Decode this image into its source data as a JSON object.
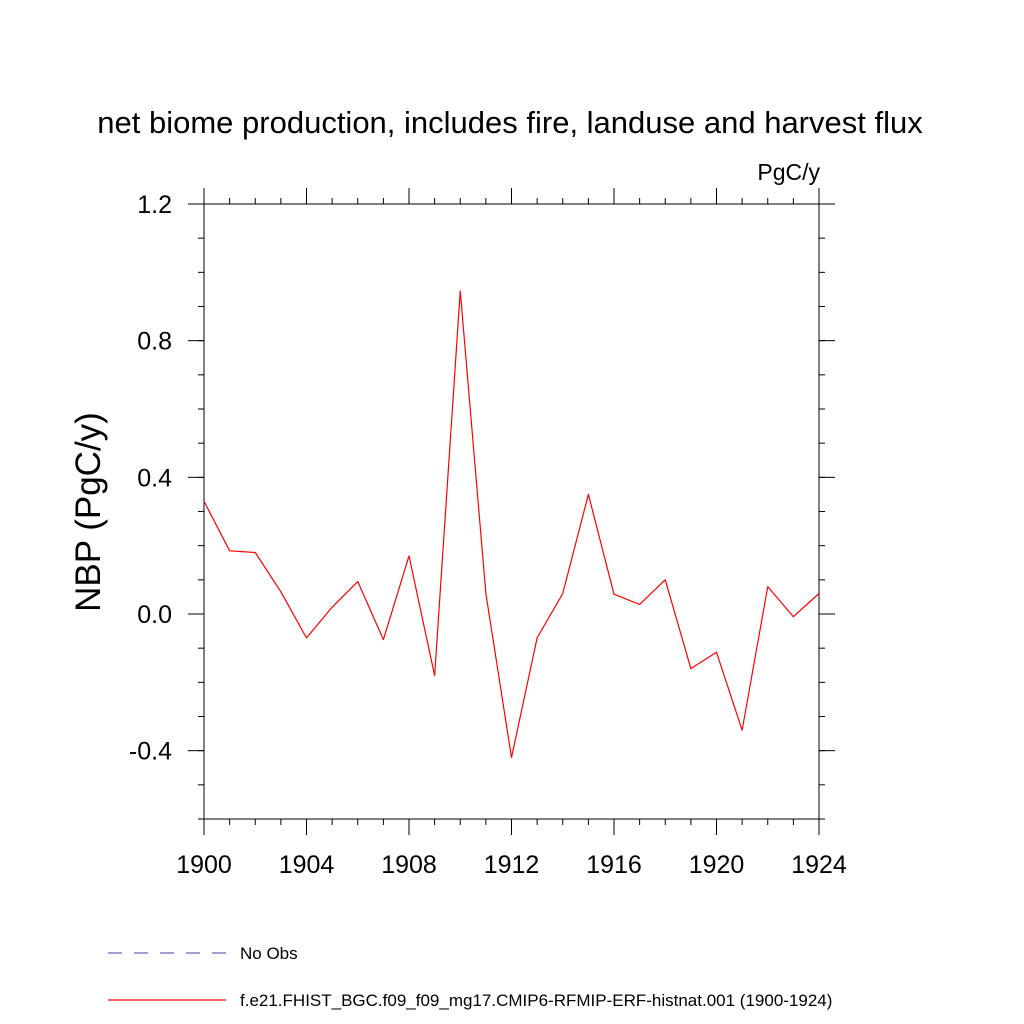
{
  "chart_data": {
    "type": "line",
    "title": "net biome production, includes fire, landuse and harvest flux",
    "units": "PgC/y",
    "ylabel": "NBP  (PgC/y)",
    "xlabel": "",
    "xlim": [
      1900,
      1924
    ],
    "ylim": [
      -0.6,
      1.2
    ],
    "xticks": [
      1900,
      1904,
      1908,
      1912,
      1916,
      1920,
      1924
    ],
    "xtick_labels": [
      "1900",
      "1904",
      "1908",
      "1912",
      "1916",
      "1920",
      "1924"
    ],
    "yticks": [
      -0.4,
      0.0,
      0.4,
      0.8,
      1.2
    ],
    "ytick_labels": [
      "-0.4",
      "0.0",
      "0.4",
      "0.8",
      "1.2"
    ],
    "grid": false,
    "legend_position": "bottom",
    "series": [
      {
        "name": "f.e21.FHIST_BGC.f09_f09_mg17.CMIP6-RFMIP-ERF-histnat.001 (1900-1924)",
        "color": "#ff0000",
        "style": "solid",
        "x": [
          1900,
          1901,
          1902,
          1903,
          1904,
          1905,
          1906,
          1907,
          1908,
          1909,
          1910,
          1911,
          1912,
          1913,
          1914,
          1915,
          1916,
          1917,
          1918,
          1919,
          1920,
          1921,
          1922,
          1923,
          1924
        ],
        "values": [
          0.33,
          0.185,
          0.18,
          0.065,
          -0.07,
          0.02,
          0.095,
          -0.075,
          0.17,
          -0.18,
          0.945,
          0.06,
          -0.42,
          -0.07,
          0.06,
          0.35,
          0.058,
          0.028,
          0.1,
          -0.16,
          -0.112,
          -0.34,
          0.08,
          -0.008,
          0.06
        ]
      },
      {
        "name": "No Obs",
        "color": "#7060b8",
        "style": "dashed",
        "x": [],
        "values": []
      }
    ]
  }
}
